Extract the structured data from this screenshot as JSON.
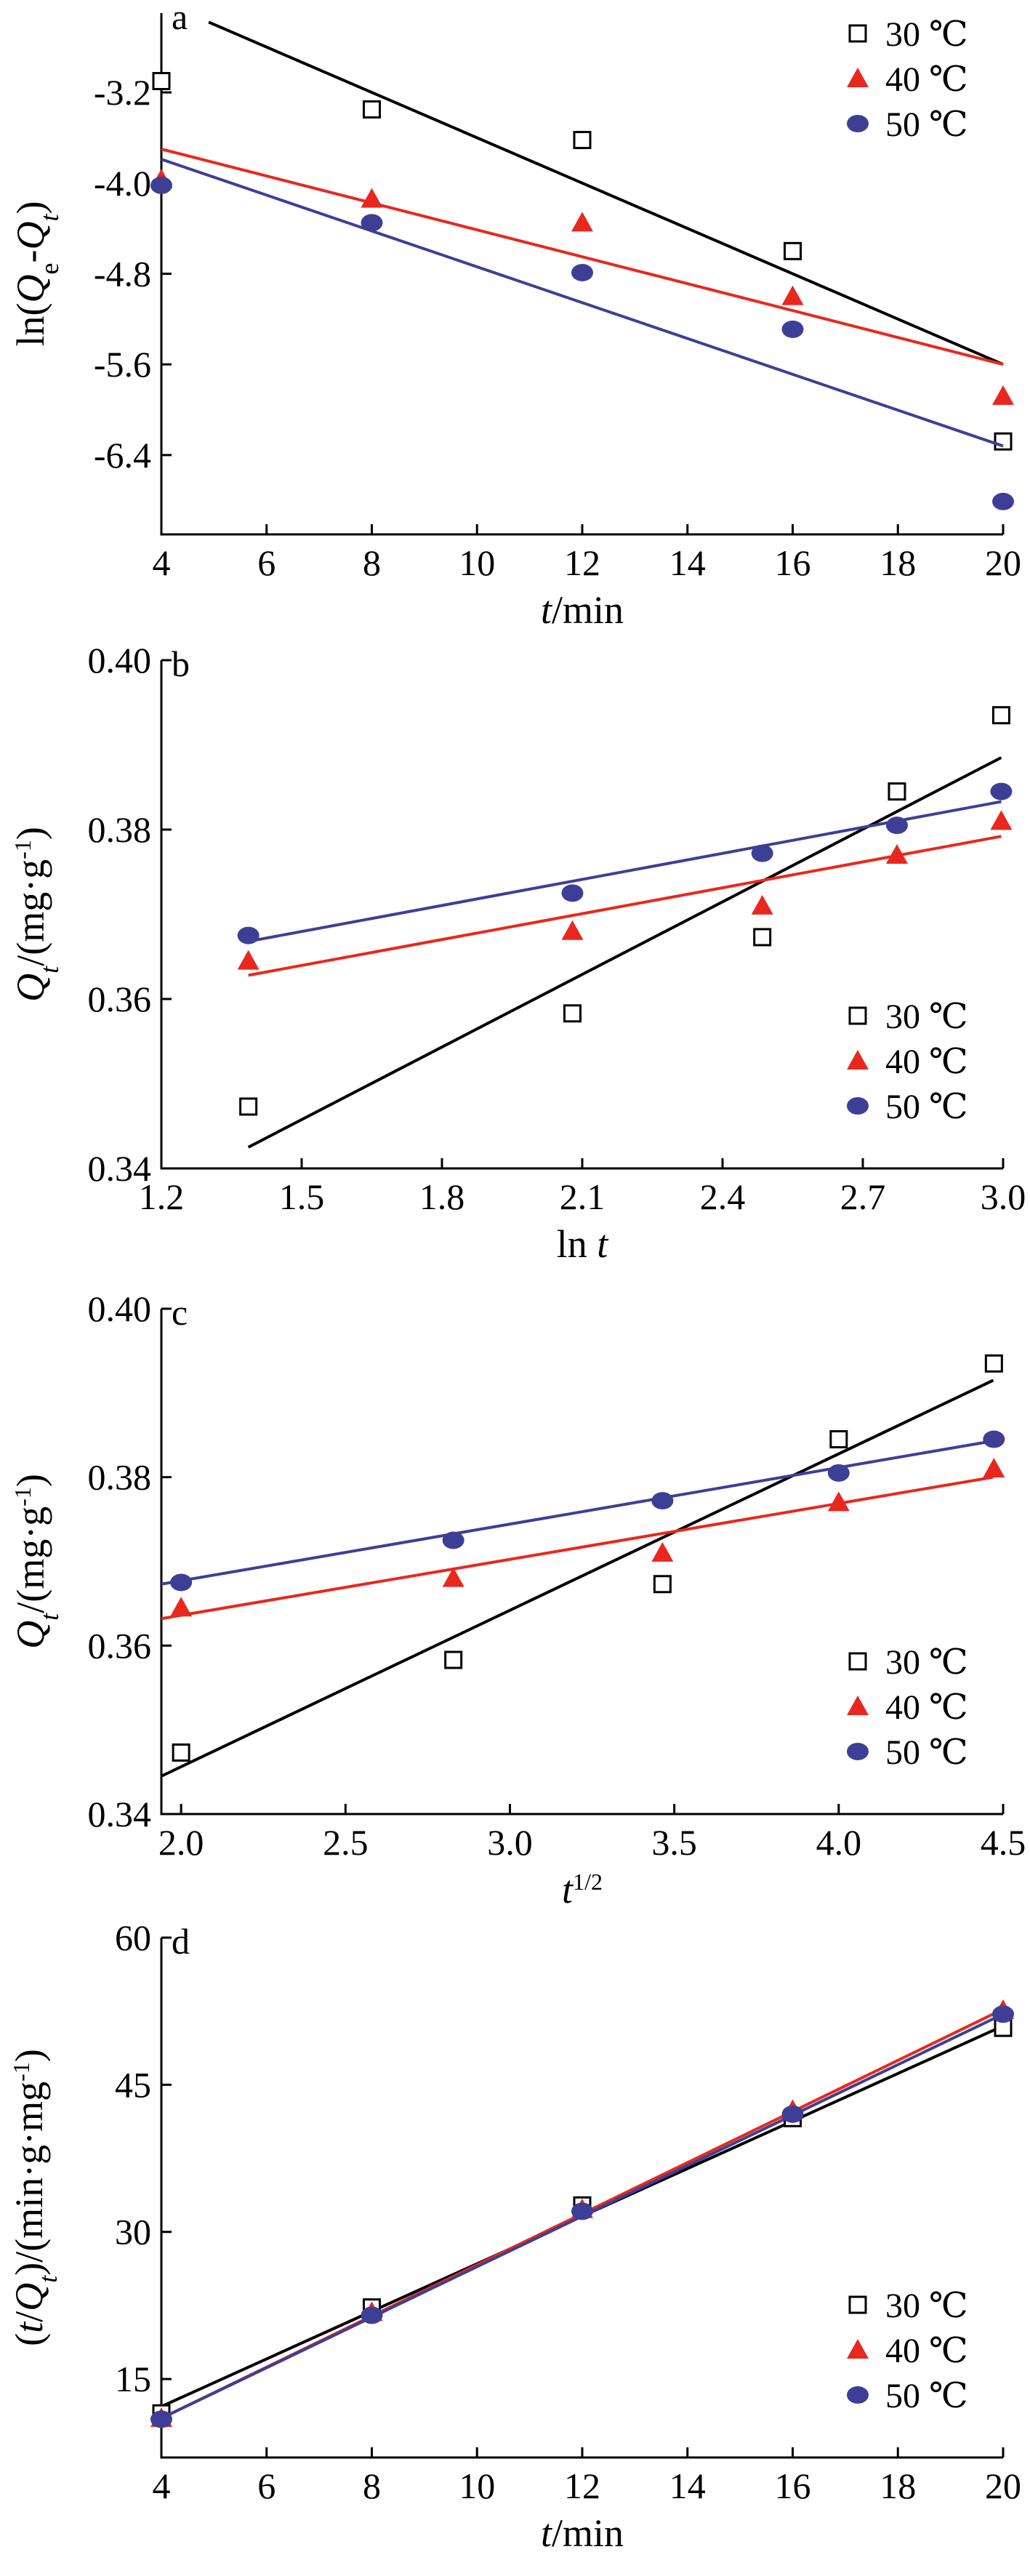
{
  "chart_data": [
    {
      "type": "scatter",
      "panel_label": "a",
      "xlabel_parts": [
        {
          "text": "t",
          "italic": true,
          "sub": false
        },
        {
          "text": "/min",
          "italic": false,
          "sub": false
        }
      ],
      "ylabel_parts": [
        {
          "text": "ln(",
          "italic": false,
          "sub": false
        },
        {
          "text": "Q",
          "italic": true,
          "sub": false
        },
        {
          "text": "e",
          "italic": false,
          "sub": true
        },
        {
          "text": "-",
          "italic": false,
          "sub": false
        },
        {
          "text": "Q",
          "italic": true,
          "sub": false
        },
        {
          "text": "t",
          "italic": true,
          "sub": true
        },
        {
          "text": ")",
          "italic": false,
          "sub": false
        }
      ],
      "xlim": [
        4,
        20
      ],
      "ylim": [
        -7.1,
        -2.5
      ],
      "xticks": [
        4,
        6,
        8,
        10,
        12,
        14,
        16,
        18,
        20
      ],
      "xtick_labels": [
        "4",
        "6",
        "8",
        "10",
        "12",
        "14",
        "16",
        "18",
        "20"
      ],
      "yticks": [
        -3.2,
        -4.0,
        -4.8,
        -5.6,
        -6.4
      ],
      "ytick_labels": [
        "-3.2",
        "-4.0",
        "-4.8",
        "-5.6",
        "-6.4"
      ],
      "legend_position": "top-right",
      "series": [
        {
          "name": "30 ℃",
          "marker": "square-open",
          "color": "#000000",
          "x": [
            4,
            8,
            12,
            16,
            20
          ],
          "y": [
            -3.1,
            -3.35,
            -3.62,
            -4.6,
            -6.28
          ],
          "fit": [
            [
              4.9,
              -2.58
            ],
            [
              20,
              -5.6
            ]
          ]
        },
        {
          "name": "40 ℃",
          "marker": "triangle",
          "color": "#e8281e",
          "x": [
            4,
            8,
            12,
            16,
            20
          ],
          "y": [
            -3.97,
            -4.14,
            -4.35,
            -5.0,
            -5.88
          ],
          "fit": [
            [
              4,
              -3.7
            ],
            [
              20,
              -5.6
            ]
          ]
        },
        {
          "name": "50 ℃",
          "marker": "circle",
          "color": "#3d3f96",
          "x": [
            4,
            8,
            12,
            16,
            20
          ],
          "y": [
            -4.02,
            -4.35,
            -4.79,
            -5.29,
            -6.81
          ],
          "fit": [
            [
              4,
              -3.79
            ],
            [
              20,
              -6.32
            ]
          ]
        }
      ]
    },
    {
      "type": "scatter",
      "panel_label": "b",
      "xlabel_parts": [
        {
          "text": "ln ",
          "italic": false,
          "sub": false
        },
        {
          "text": "t",
          "italic": true,
          "sub": false
        }
      ],
      "ylabel_parts": [
        {
          "text": "Q",
          "italic": true,
          "sub": false
        },
        {
          "text": "t",
          "italic": true,
          "sub": true
        },
        {
          "text": "/(mg·g",
          "italic": false,
          "sub": false
        },
        {
          "text": "-1",
          "italic": false,
          "sup": true
        },
        {
          "text": ")",
          "italic": false,
          "sub": false
        }
      ],
      "xlim": [
        1.2,
        3.0
      ],
      "ylim": [
        0.34,
        0.4
      ],
      "xticks": [
        1.2,
        1.5,
        1.8,
        2.1,
        2.4,
        2.7,
        3.0
      ],
      "xtick_labels": [
        "1.2",
        "1.5",
        "1.8",
        "2.1",
        "2.4",
        "2.7",
        "3.0"
      ],
      "yticks": [
        0.34,
        0.36,
        0.38,
        0.4
      ],
      "ytick_labels": [
        "0.34",
        "0.36",
        "0.38",
        "0.40"
      ],
      "legend_position": "bottom-right",
      "series": [
        {
          "name": "30 ℃",
          "marker": "square-open",
          "color": "#000000",
          "x": [
            1.386,
            2.079,
            2.485,
            2.773,
            2.996
          ],
          "y": [
            0.3473,
            0.3583,
            0.3673,
            0.3845,
            0.3935
          ],
          "fit": [
            [
              1.386,
              0.3425
            ],
            [
              2.996,
              0.3885
            ]
          ]
        },
        {
          "name": "40 ℃",
          "marker": "triangle",
          "color": "#e8281e",
          "x": [
            1.386,
            2.079,
            2.485,
            2.773,
            2.996
          ],
          "y": [
            0.3645,
            0.368,
            0.371,
            0.377,
            0.381
          ],
          "fit": [
            [
              1.386,
              0.3628
            ],
            [
              2.996,
              0.3792
            ]
          ]
        },
        {
          "name": "50 ℃",
          "marker": "circle",
          "color": "#3d3f96",
          "x": [
            1.386,
            2.079,
            2.485,
            2.773,
            2.996
          ],
          "y": [
            0.3675,
            0.3725,
            0.3772,
            0.3805,
            0.3845
          ],
          "fit": [
            [
              1.386,
              0.3668
            ],
            [
              2.996,
              0.3833
            ]
          ]
        }
      ]
    },
    {
      "type": "scatter",
      "panel_label": "c",
      "xlabel_parts": [
        {
          "text": "t",
          "italic": true,
          "sub": false
        },
        {
          "text": "1/2",
          "italic": false,
          "sup": true
        }
      ],
      "ylabel_parts": [
        {
          "text": "Q",
          "italic": true,
          "sub": false
        },
        {
          "text": "t",
          "italic": true,
          "sub": true
        },
        {
          "text": "/(mg·g",
          "italic": false,
          "sub": false
        },
        {
          "text": "-1",
          "italic": false,
          "sup": true
        },
        {
          "text": ")",
          "italic": false,
          "sub": false
        }
      ],
      "xlim": [
        1.94,
        4.5
      ],
      "ylim": [
        0.34,
        0.4
      ],
      "xticks": [
        2.0,
        2.5,
        3.0,
        3.5,
        4.0,
        4.5
      ],
      "xtick_labels": [
        "2.0",
        "2.5",
        "3.0",
        "3.5",
        "4.0",
        "4.5"
      ],
      "yticks": [
        0.34,
        0.36,
        0.38,
        0.4
      ],
      "ytick_labels": [
        "0.34",
        "0.36",
        "0.38",
        "0.40"
      ],
      "legend_position": "bottom-right",
      "series": [
        {
          "name": "30 ℃",
          "marker": "square-open",
          "color": "#000000",
          "x": [
            2.0,
            2.828,
            3.464,
            4.0,
            4.472
          ],
          "y": [
            0.3473,
            0.3583,
            0.3673,
            0.3845,
            0.3935
          ],
          "fit": [
            [
              1.94,
              0.3445
            ],
            [
              4.47,
              0.3915
            ]
          ]
        },
        {
          "name": "40 ℃",
          "marker": "triangle",
          "color": "#e8281e",
          "x": [
            2.0,
            2.828,
            3.464,
            4.0,
            4.472
          ],
          "y": [
            0.3645,
            0.368,
            0.371,
            0.377,
            0.381
          ],
          "fit": [
            [
              1.94,
              0.3632
            ],
            [
              4.47,
              0.38
            ]
          ]
        },
        {
          "name": "50 ℃",
          "marker": "circle",
          "color": "#3d3f96",
          "x": [
            2.0,
            2.828,
            3.464,
            4.0,
            4.472
          ],
          "y": [
            0.3675,
            0.3725,
            0.3772,
            0.3805,
            0.3845
          ],
          "fit": [
            [
              1.94,
              0.3673
            ],
            [
              4.47,
              0.3843
            ]
          ]
        }
      ]
    },
    {
      "type": "scatter",
      "panel_label": "d",
      "xlabel_parts": [
        {
          "text": "t",
          "italic": true,
          "sub": false
        },
        {
          "text": "/min",
          "italic": false,
          "sub": false
        }
      ],
      "ylabel_parts": [
        {
          "text": "(",
          "italic": false,
          "sub": false
        },
        {
          "text": "t",
          "italic": true,
          "sub": false
        },
        {
          "text": "/",
          "italic": false,
          "sub": false
        },
        {
          "text": "Q",
          "italic": true,
          "sub": false
        },
        {
          "text": "t",
          "italic": true,
          "sub": true
        },
        {
          "text": ")/(min·g·mg",
          "italic": false,
          "sub": false
        },
        {
          "text": "-1",
          "italic": false,
          "sup": true
        },
        {
          "text": ")",
          "italic": false,
          "sub": false
        }
      ],
      "xlim": [
        4,
        20
      ],
      "ylim": [
        7,
        60
      ],
      "xticks": [
        4,
        6,
        8,
        10,
        12,
        14,
        16,
        18,
        20
      ],
      "xtick_labels": [
        "4",
        "6",
        "8",
        "10",
        "12",
        "14",
        "16",
        "18",
        "20"
      ],
      "yticks": [
        15,
        30,
        45,
        60
      ],
      "ytick_labels": [
        "15",
        "30",
        "45",
        "60"
      ],
      "legend_position": "bottom-right",
      "series": [
        {
          "name": "30 ℃",
          "marker": "square-open",
          "color": "#000000",
          "x": [
            4,
            8,
            12,
            16,
            20
          ],
          "y": [
            11.5,
            22.3,
            32.7,
            41.6,
            50.8
          ],
          "fit": [
            [
              4,
              12.2
            ],
            [
              20,
              51.0
            ]
          ]
        },
        {
          "name": "40 ℃",
          "marker": "triangle",
          "color": "#e8281e",
          "x": [
            4,
            8,
            12,
            16,
            20
          ],
          "y": [
            11.0,
            21.8,
            32.3,
            42.4,
            52.6
          ],
          "fit": [
            [
              4,
              11.0
            ],
            [
              20,
              52.7
            ]
          ]
        },
        {
          "name": "50 ℃",
          "marker": "circle",
          "color": "#3d3f96",
          "x": [
            4,
            8,
            12,
            16,
            20
          ],
          "y": [
            10.9,
            21.5,
            32.1,
            42.0,
            52.2
          ],
          "fit": [
            [
              4,
              11.0
            ],
            [
              20,
              52.2
            ]
          ]
        }
      ]
    }
  ]
}
